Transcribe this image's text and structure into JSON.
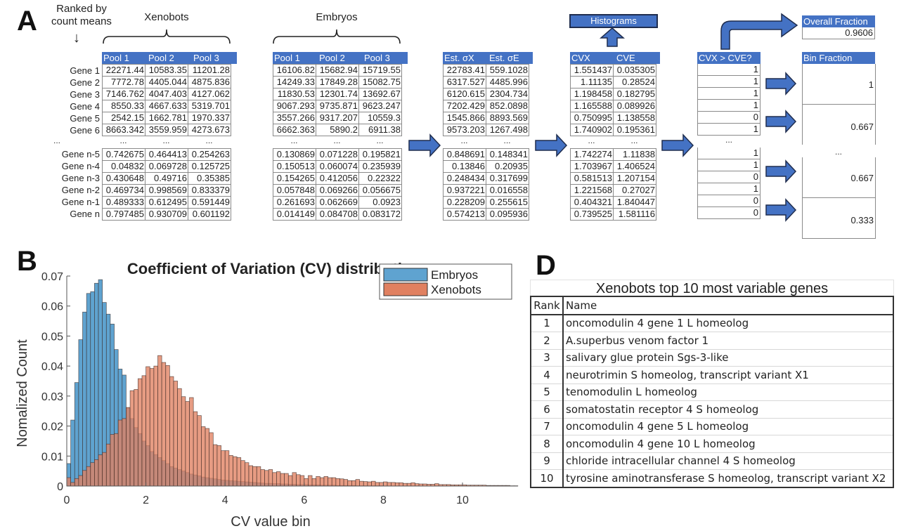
{
  "panelA": {
    "letter": "A",
    "ranked_label": "Ranked by count means",
    "xenobots_label": "Xenobots",
    "embryos_label": "Embryos",
    "row_labels_top": [
      "Gene 1",
      "Gene 2",
      "Gene 3",
      "Gene 4",
      "Gene 5",
      "Gene 6"
    ],
    "row_labels_bottom": [
      "Gene n-5",
      "Gene n-4",
      "Gene n-3",
      "Gene n-2",
      "Gene n-1",
      "Gene n"
    ],
    "ellipsis": "...",
    "xenobots_table": {
      "headers": [
        "Pool 1",
        "Pool 2",
        "Pool 3"
      ],
      "top": [
        [
          "22271.44",
          "10583.35",
          "11201.28"
        ],
        [
          "7772.78",
          "4405.044",
          "4875.836"
        ],
        [
          "7146.762",
          "4047.403",
          "4127.062"
        ],
        [
          "8550.33",
          "4667.633",
          "5319.701"
        ],
        [
          "2542.15",
          "1662.781",
          "1970.337"
        ],
        [
          "8663.342",
          "3559.959",
          "4273.673"
        ]
      ],
      "bottom": [
        [
          "0.742675",
          "0.464413",
          "0.254263"
        ],
        [
          "0.04832",
          "0.069728",
          "0.125725"
        ],
        [
          "0.430648",
          "0.49716",
          "0.35385"
        ],
        [
          "0.469734",
          "0.998569",
          "0.833379"
        ],
        [
          "0.489333",
          "0.612495",
          "0.591449"
        ],
        [
          "0.797485",
          "0.930709",
          "0.601192"
        ]
      ]
    },
    "embryos_table": {
      "headers": [
        "Pool 1",
        "Pool 2",
        "Pool 3"
      ],
      "top": [
        [
          "16106.82",
          "15682.94",
          "15719.55"
        ],
        [
          "14249.33",
          "17849.28",
          "15082.75"
        ],
        [
          "11830.53",
          "12301.74",
          "13692.67"
        ],
        [
          "9067.293",
          "9735.871",
          "9623.247"
        ],
        [
          "3557.266",
          "9317.207",
          "10559.3"
        ],
        [
          "6662.363",
          "5890.2",
          "6911.38"
        ]
      ],
      "bottom": [
        [
          "0.130869",
          "0.071228",
          "0.195821"
        ],
        [
          "0.150513",
          "0.060074",
          "0.235939"
        ],
        [
          "0.154265",
          "0.412056",
          "0.22322"
        ],
        [
          "0.057848",
          "0.069266",
          "0.056675"
        ],
        [
          "0.261693",
          "0.062669",
          "0.0923"
        ],
        [
          "0.014149",
          "0.084708",
          "0.083172"
        ]
      ]
    },
    "sigma_table": {
      "headers": [
        "Est. σX",
        "Est. σE"
      ],
      "top": [
        [
          "22783.41",
          "559.1028"
        ],
        [
          "6317.527",
          "4485.996"
        ],
        [
          "6120.615",
          "2304.734"
        ],
        [
          "7202.429",
          "852.0898"
        ],
        [
          "1545.866",
          "8893.569"
        ],
        [
          "9573.203",
          "1267.498"
        ]
      ],
      "bottom": [
        [
          "0.848691",
          "0.148341"
        ],
        [
          "0.13846",
          "0.20935"
        ],
        [
          "0.248434",
          "0.317699"
        ],
        [
          "0.937221",
          "0.016558"
        ],
        [
          "0.228209",
          "0.255615"
        ],
        [
          "0.574213",
          "0.095936"
        ]
      ]
    },
    "cv_table": {
      "headers": [
        "CVX",
        "CVE"
      ],
      "top": [
        [
          "1.551437",
          "0.035305"
        ],
        [
          "1.11135",
          "0.28524"
        ],
        [
          "1.198458",
          "0.182795"
        ],
        [
          "1.165588",
          "0.089926"
        ],
        [
          "0.750995",
          "1.138558"
        ],
        [
          "1.740902",
          "0.195361"
        ]
      ],
      "bottom": [
        [
          "1.742274",
          "1.11838"
        ],
        [
          "1.703967",
          "1.406524"
        ],
        [
          "0.581513",
          "1.207154"
        ],
        [
          "1.221568",
          "0.27027"
        ],
        [
          "0.404321",
          "1.840447"
        ],
        [
          "0.739525",
          "1.581116"
        ]
      ]
    },
    "compare_table": {
      "header": "CVX > CVE?",
      "top": [
        "1",
        "1",
        "1",
        "1",
        "0",
        "1"
      ],
      "bottom": [
        "1",
        "1",
        "0",
        "1",
        "0",
        "0"
      ]
    },
    "histograms_label": "Histograms",
    "overall_fraction": {
      "label": "Overall Fraction",
      "value": "0.9606"
    },
    "bin_fraction": {
      "label": "Bin Fraction",
      "top": [
        "1",
        "0.667"
      ],
      "bottom": [
        "0.667",
        "0.333"
      ]
    },
    "accent_color": "#4472c4"
  },
  "panelB": {
    "letter": "B"
  },
  "panelD": {
    "letter": "D",
    "title": "Xenobots top 10 most variable genes",
    "headers": [
      "Rank",
      "Name"
    ],
    "rows": [
      [
        "1",
        "oncomodulin 4 gene 1 L homeolog"
      ],
      [
        "2",
        "A.superbus venom factor 1"
      ],
      [
        "3",
        "salivary glue protein Sgs-3-like"
      ],
      [
        "4",
        "neurotrimin S homeolog, transcript variant X1"
      ],
      [
        "5",
        "tenomodulin L homeolog"
      ],
      [
        "6",
        "somatostatin receptor 4 S homeolog"
      ],
      [
        "7",
        "oncomodulin 4 gene 5 L homeolog"
      ],
      [
        "8",
        "oncomodulin 4 gene 10 L homeolog"
      ],
      [
        "9",
        "chloride intracellular channel 4 S homeolog"
      ],
      [
        "10",
        "tyrosine aminotransferase S homeolog, transcript variant X2"
      ]
    ]
  },
  "chart_data": {
    "type": "bar",
    "subtype": "overlapping-histogram",
    "title": "Coefficient of Variation (CV) distributions",
    "xlabel": "CV value bin",
    "ylabel": "Nomalized Count",
    "xlim": [
      0,
      11.4
    ],
    "ylim": [
      0,
      0.07
    ],
    "xticks": [
      "0",
      "2",
      "4",
      "6",
      "8",
      "10"
    ],
    "yticks": [
      "0",
      "0.01",
      "0.02",
      "0.03",
      "0.04",
      "0.05",
      "0.06",
      "0.07"
    ],
    "legend": {
      "position": "top-right",
      "entries": [
        "Embryos",
        "Xenobots"
      ]
    },
    "bin_width": 0.1,
    "bin_start": 0,
    "series": [
      {
        "name": "Embryos",
        "color": "#5fa3d0",
        "values": [
          0.0075,
          0.022,
          0.0345,
          0.0488,
          0.058,
          0.0642,
          0.0648,
          0.0676,
          0.0688,
          0.0612,
          0.0573,
          0.054,
          0.0455,
          0.039,
          0.037,
          0.026,
          0.0225,
          0.0195,
          0.0175,
          0.015,
          0.0135,
          0.0115,
          0.0105,
          0.0095,
          0.0085,
          0.0075,
          0.0065,
          0.006,
          0.0055,
          0.005,
          0.0045,
          0.004,
          0.0037,
          0.0034,
          0.003,
          0.0028,
          0.0026,
          0.0024,
          0.0022,
          0.002,
          0.0019,
          0.0018,
          0.0017,
          0.0016,
          0.0015,
          0.0014,
          0.0013,
          0.0012,
          0.0011,
          0.001,
          0.0009,
          0.0009,
          0.0008,
          0.0008,
          0.0007,
          0.0007,
          0.0006,
          0.0006,
          0.0005,
          0.0005,
          0.0005,
          0.0004,
          0.0004,
          0.0004,
          0.0003,
          0.0003,
          0.0003,
          0.0003,
          0.0002,
          0.0002,
          0.0002,
          0.0002,
          0.0002,
          0.0001,
          0.0001,
          0.0001,
          0.0001,
          0.0001,
          0.0001,
          0.0001
        ]
      },
      {
        "name": "Xenobots",
        "color": "#e08060",
        "values": [
          0.0028,
          0.0012,
          0.0025,
          0.0035,
          0.0052,
          0.0065,
          0.0078,
          0.0088,
          0.0104,
          0.0112,
          0.014,
          0.0172,
          0.0175,
          0.022,
          0.0225,
          0.0262,
          0.0318,
          0.0322,
          0.0358,
          0.0368,
          0.0398,
          0.0392,
          0.04,
          0.0435,
          0.0412,
          0.0402,
          0.0365,
          0.035,
          0.0325,
          0.0298,
          0.0282,
          0.0295,
          0.0248,
          0.0235,
          0.0198,
          0.0192,
          0.0178,
          0.0138,
          0.0135,
          0.0118,
          0.0118,
          0.0102,
          0.0098,
          0.0095,
          0.0085,
          0.0078,
          0.0068,
          0.0065,
          0.0065,
          0.0055,
          0.0052,
          0.0055,
          0.0045,
          0.0048,
          0.0042,
          0.0042,
          0.0035,
          0.0045,
          0.0038,
          0.0035,
          0.0025,
          0.0035,
          0.0025,
          0.0032,
          0.0028,
          0.0032,
          0.0028,
          0.0028,
          0.0025,
          0.0024,
          0.0022,
          0.0018,
          0.0018,
          0.0022,
          0.0016,
          0.0015,
          0.0014,
          0.0016,
          0.0012,
          0.0012,
          0.0014,
          0.0012,
          0.0012,
          0.0011,
          0.0011,
          0.0009,
          0.0009,
          0.0011,
          0.0008,
          0.0007,
          0.0007,
          0.0006,
          0.0006,
          0.0008,
          0.0005,
          0.0005,
          0.0005,
          0.0004,
          0.0004,
          0.0004,
          0.0004,
          0.0003,
          0.0003,
          0.0003,
          0.0003,
          0.0003,
          0.0002,
          0.0002,
          0.0002,
          0.0002,
          0.0002,
          0.0002,
          0.0001,
          0.0001
        ]
      }
    ]
  }
}
